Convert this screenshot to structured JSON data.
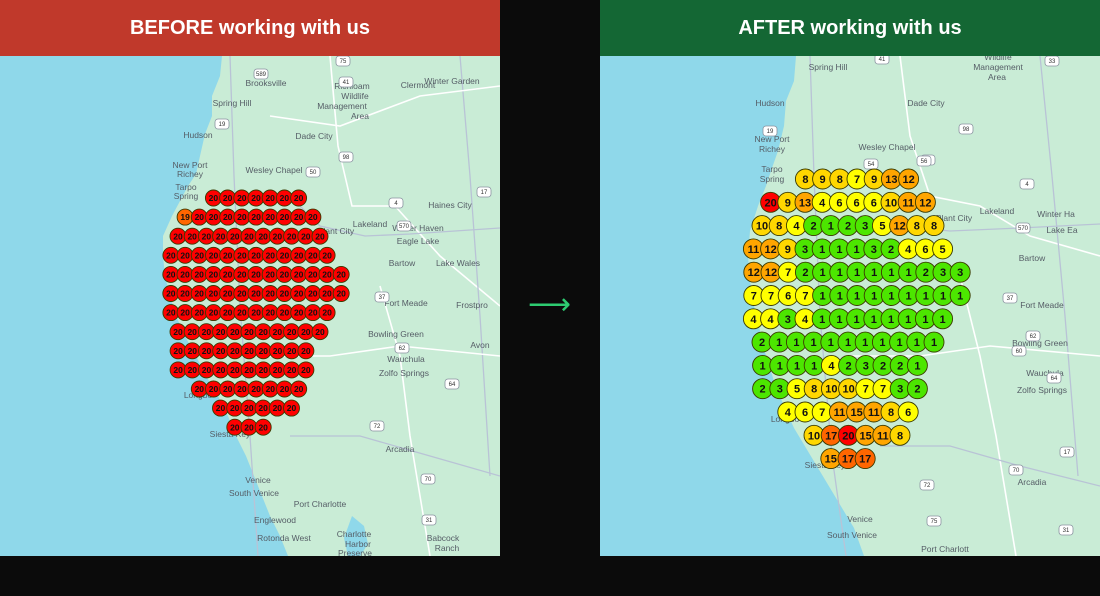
{
  "colors": {
    "before_header": "#c0392b",
    "after_header": "#146734",
    "background": "#0b0b0b",
    "arrow": "#2ecc71",
    "water": "#8fd8ea",
    "land": "#c9ecd6",
    "rank_1_3": "#4ce600",
    "rank_4_7": "#ffff00",
    "rank_8_10": "#ffd700",
    "rank_11_15": "#ffa500",
    "rank_16_19": "#ff6600",
    "rank_20": "#ff0000"
  },
  "arrow_icon": "arrow-right-icon",
  "before": {
    "title": "BEFORE working with us",
    "places": [
      "Brooksville",
      "Spring Hill",
      "Richloam",
      "Wildlife",
      "Management",
      "Area",
      "Clermont",
      "Winter Garden",
      "Hudson",
      "Dade City",
      "New Port",
      "Richey",
      "Wesley Chapel",
      "Tarpo",
      "Spring",
      "Plant City",
      "Lakeland",
      "Haines City",
      "Winter Haven",
      "Eagle Lake",
      "Bartow",
      "Lake Wales",
      "Fort Meade",
      "Frostpro",
      "Bowling Green",
      "Avon",
      "Wauchula",
      "Zolfo Springs",
      "Longbo",
      "Siesta Key",
      "Arcadia",
      "Venice",
      "South Venice",
      "Port Charlotte",
      "Englewood",
      "Rotonda West",
      "Charlotte",
      "Harbor",
      "Preserve",
      "Babcock",
      "Ranch"
    ],
    "shields": [
      "589",
      "41",
      "75",
      "19",
      "50",
      "98",
      "4",
      "570",
      "17",
      "37",
      "62",
      "64",
      "72",
      "70",
      "31"
    ],
    "grid_rows": [
      [
        20,
        20,
        20,
        20,
        20,
        20,
        20
      ],
      [
        19,
        20,
        20,
        20,
        20,
        20,
        20,
        20,
        20,
        20
      ],
      [
        20,
        20,
        20,
        20,
        20,
        20,
        20,
        20,
        20,
        20,
        20
      ],
      [
        20,
        20,
        20,
        20,
        20,
        20,
        20,
        20,
        20,
        20,
        20,
        20
      ],
      [
        20,
        20,
        20,
        20,
        20,
        20,
        20,
        20,
        20,
        20,
        20,
        20,
        20
      ],
      [
        20,
        20,
        20,
        20,
        20,
        20,
        20,
        20,
        20,
        20,
        20,
        20,
        20
      ],
      [
        20,
        20,
        20,
        20,
        20,
        20,
        20,
        20,
        20,
        20,
        20,
        20
      ],
      [
        20,
        20,
        20,
        20,
        20,
        20,
        20,
        20,
        20,
        20,
        20
      ],
      [
        20,
        20,
        20,
        20,
        20,
        20,
        20,
        20,
        20,
        20
      ],
      [
        20,
        20,
        20,
        20,
        20,
        20,
        20,
        20,
        20,
        20
      ],
      [
        20,
        20,
        20,
        20,
        20,
        20,
        20,
        20
      ],
      [
        20,
        20,
        20,
        20,
        20,
        20
      ],
      [
        20,
        20,
        20
      ]
    ]
  },
  "after": {
    "title": "AFTER working with us",
    "places": [
      "Spring Hill",
      "Wildlife",
      "Management",
      "Area",
      "Hudson",
      "Dade City",
      "New Port",
      "Richey",
      "Wesley Chapel",
      "Tarpo",
      "Spring",
      "Plant City",
      "Lakeland",
      "Winter Ha",
      "Lake Ea",
      "Bartow",
      "Fort Meade",
      "Bowling Green",
      "Wauchula",
      "Zolfo Springs",
      "Longbo",
      "Siesta Key",
      "Arcadia",
      "Venice",
      "South Venice",
      "Port Charlott"
    ],
    "shields": [
      "41",
      "33",
      "19",
      "50",
      "98",
      "56",
      "54",
      "4",
      "570",
      "37",
      "17",
      "60",
      "62",
      "64",
      "72",
      "70",
      "31",
      "75"
    ],
    "grid_rows": [
      [
        8,
        9,
        8,
        7,
        9,
        13,
        12
      ],
      [
        20,
        9,
        13,
        4,
        6,
        6,
        6,
        10,
        11,
        12
      ],
      [
        10,
        8,
        4,
        2,
        1,
        2,
        3,
        5,
        12,
        8,
        8
      ],
      [
        11,
        12,
        9,
        3,
        1,
        1,
        1,
        3,
        2,
        4,
        6,
        5
      ],
      [
        12,
        12,
        7,
        2,
        1,
        1,
        1,
        1,
        1,
        1,
        2,
        3,
        3
      ],
      [
        7,
        7,
        6,
        7,
        1,
        1,
        1,
        1,
        1,
        1,
        1,
        1,
        1
      ],
      [
        4,
        4,
        3,
        4,
        1,
        1,
        1,
        1,
        1,
        1,
        1,
        1
      ],
      [
        2,
        1,
        1,
        1,
        1,
        1,
        1,
        1,
        1,
        1,
        1
      ],
      [
        1,
        1,
        1,
        1,
        4,
        2,
        3,
        2,
        2,
        1
      ],
      [
        2,
        3,
        5,
        8,
        10,
        10,
        7,
        7,
        3,
        2
      ],
      [
        4,
        6,
        7,
        11,
        15,
        11,
        8,
        6
      ],
      [
        10,
        17,
        20,
        15,
        11,
        8
      ],
      [
        15,
        17,
        17
      ]
    ]
  }
}
